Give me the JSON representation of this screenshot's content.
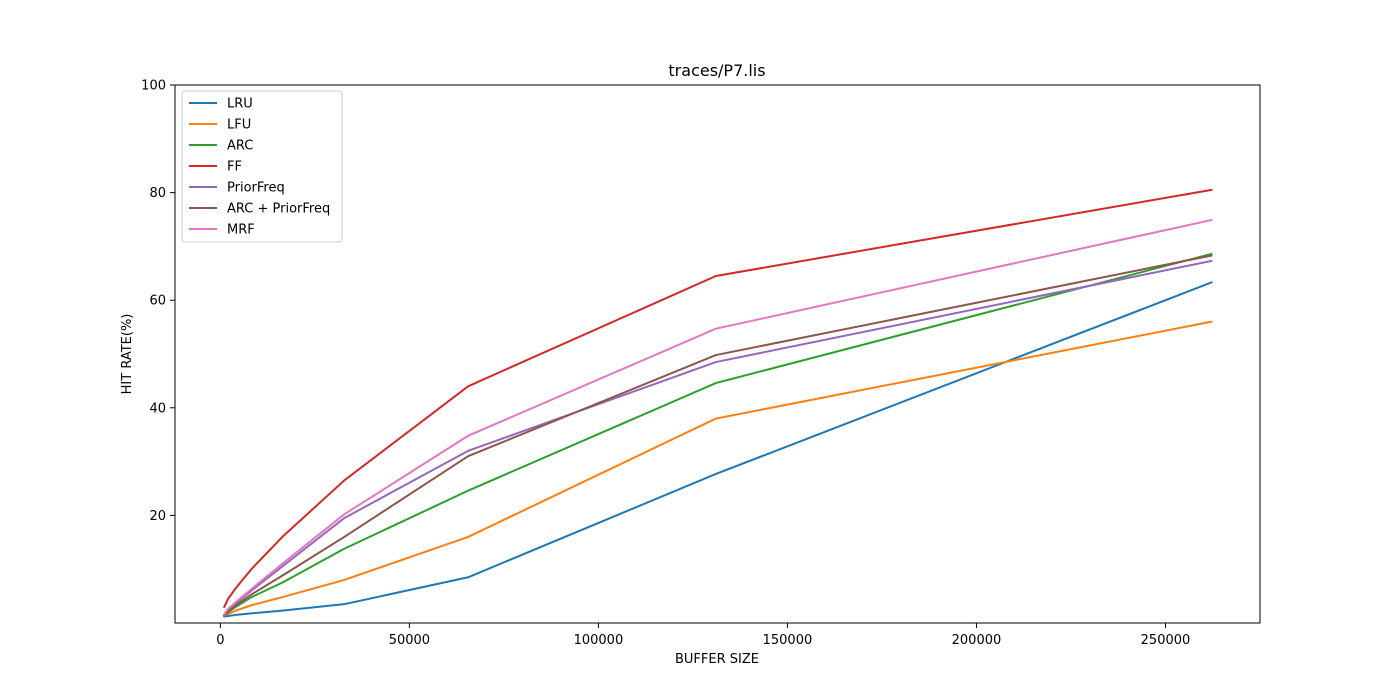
{
  "chart_data": {
    "type": "line",
    "title": "traces/P7.lis",
    "xlabel": "BUFFER SIZE",
    "ylabel": "HIT RATE(%)",
    "xlim": [
      -12000,
      275000
    ],
    "ylim": [
      0,
      100
    ],
    "xticks": [
      0,
      50000,
      100000,
      150000,
      200000,
      250000
    ],
    "yticks": [
      20,
      40,
      60,
      80,
      100
    ],
    "legend_position": "upper-left",
    "grid": false,
    "x": [
      1024,
      2048,
      4096,
      8192,
      16384,
      32768,
      65536,
      131072,
      262144
    ],
    "series": [
      {
        "name": "LRU",
        "color": "#1f77b4",
        "values": [
          1.2,
          1.3,
          1.5,
          1.8,
          2.3,
          3.5,
          8.5,
          27.7,
          63.3
        ]
      },
      {
        "name": "LFU",
        "color": "#ff7f0e",
        "values": [
          1.3,
          1.7,
          2.3,
          3.3,
          4.8,
          8.0,
          16.0,
          38.0,
          56.0
        ]
      },
      {
        "name": "ARC",
        "color": "#2ca02c",
        "values": [
          1.3,
          2.0,
          3.0,
          4.8,
          7.5,
          13.8,
          24.6,
          44.6,
          68.6
        ]
      },
      {
        "name": "FF",
        "color": "#d62728",
        "values": [
          3.0,
          4.5,
          6.5,
          10.0,
          16.0,
          26.5,
          44.0,
          64.5,
          80.5
        ]
      },
      {
        "name": "PriorFreq",
        "color": "#9467bd",
        "values": [
          1.5,
          2.5,
          3.7,
          6.0,
          10.5,
          19.5,
          32.0,
          48.5,
          67.3
        ]
      },
      {
        "name": "ARC + PriorFreq",
        "color": "#8c564b",
        "values": [
          1.3,
          2.2,
          3.3,
          5.3,
          8.8,
          16.0,
          31.0,
          49.8,
          68.3
        ]
      },
      {
        "name": "MRF",
        "color": "#e377c2",
        "values": [
          1.6,
          2.6,
          3.9,
          6.3,
          11.0,
          20.2,
          34.8,
          54.7,
          74.9
        ]
      }
    ]
  }
}
